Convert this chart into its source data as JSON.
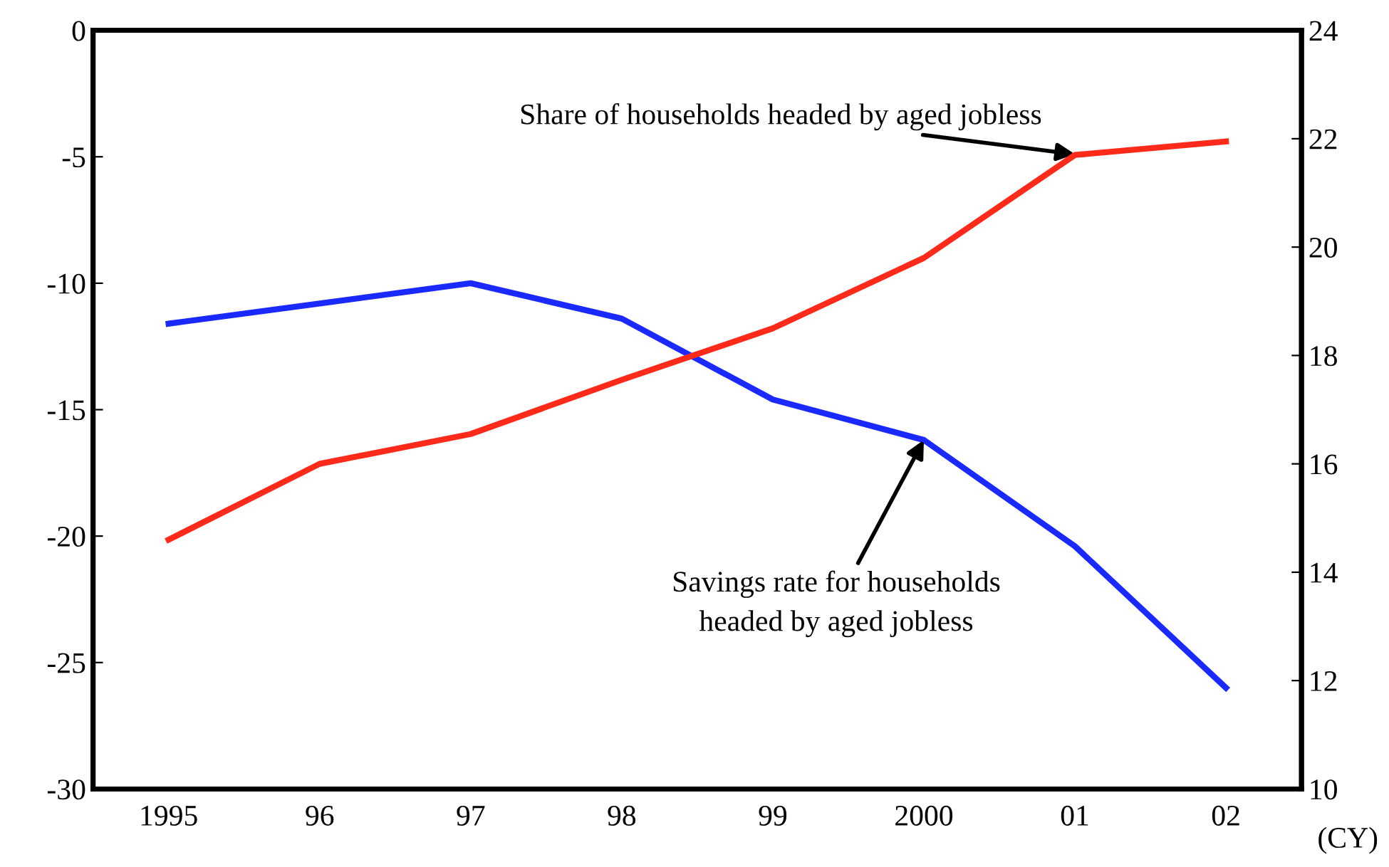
{
  "chart_data": {
    "type": "line",
    "categories": [
      "1995",
      "96",
      "97",
      "98",
      "99",
      "2000",
      "01",
      "02"
    ],
    "xlabel": "(CY)",
    "series": [
      {
        "color": "#ff2a1a",
        "axis": "y2",
        "values": [
          14.6,
          16.0,
          16.55,
          17.55,
          18.5,
          19.8,
          21.7,
          21.95
        ]
      },
      {
        "color": "#1a2aff",
        "values": [
          -11.6,
          -10.8,
          -10.0,
          -11.4,
          -14.6,
          -16.2,
          -20.4,
          -26.0
        ]
      }
    ],
    "ylim": [
      -30,
      0
    ],
    "yticks": [
      -30,
      -25,
      -20,
      -15,
      -10,
      -5,
      0
    ],
    "y2lim": [
      10,
      24
    ],
    "y2ticks": [
      10,
      12,
      14,
      16,
      18,
      20,
      22,
      24
    ],
    "annotations": [
      {
        "text": "Share of households headed by aged jobless",
        "x": "01",
        "y": -4.9
      },
      {
        "text": "Savings rate for households\nheaded by aged jobless",
        "x": "2000",
        "y": -16.2
      }
    ],
    "grid": false,
    "legend": false,
    "marker": "none",
    "line_style": "solid"
  }
}
